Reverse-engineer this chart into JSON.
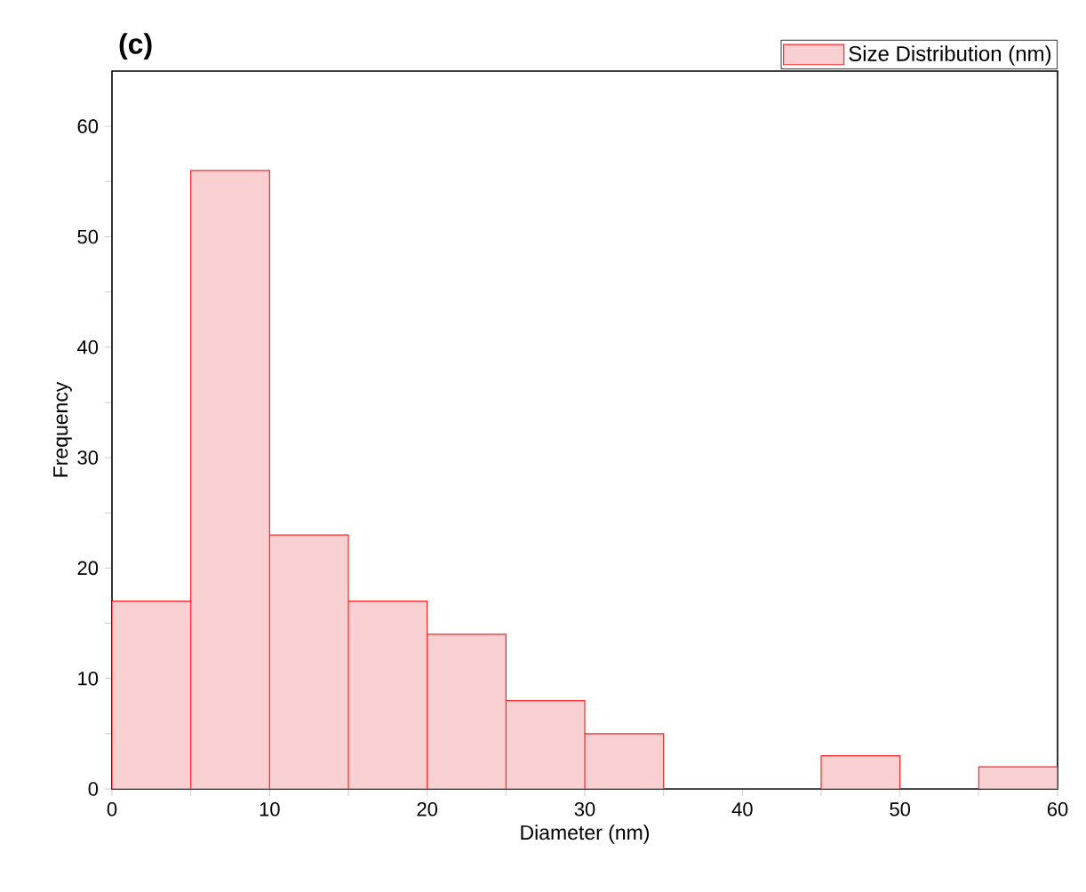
{
  "chart_data": {
    "type": "histogram",
    "title": "(c)",
    "xlabel": "Diameter (nm)",
    "ylabel": "Frequency",
    "bins": [
      0,
      5,
      10,
      15,
      20,
      25,
      30,
      35,
      40,
      45,
      50,
      55,
      60
    ],
    "series": [
      {
        "name": "Size Distribution (nm)",
        "color": "#f9d0d2",
        "values": [
          17,
          56,
          23,
          17,
          14,
          8,
          5,
          0,
          0,
          3,
          0,
          2
        ]
      }
    ],
    "xlim": [
      0,
      60
    ],
    "ylim": [
      0,
      65
    ],
    "xticks": [
      0,
      {
        "value": 5,
        "label": null
      },
      10,
      {
        "value": 15,
        "label": null
      },
      20,
      {
        "value": 25,
        "label": null
      },
      30,
      {
        "value": 35,
        "label": null
      },
      40,
      {
        "value": 45,
        "label": null
      },
      50,
      {
        "value": 55,
        "label": null
      },
      60
    ],
    "yticks": [
      0,
      {
        "value": 5,
        "label": null
      },
      10,
      {
        "value": 15,
        "label": null
      },
      20,
      {
        "value": 25,
        "label": null
      },
      30,
      {
        "value": 35,
        "label": null
      },
      40,
      {
        "value": 45,
        "label": null
      },
      50,
      {
        "value": 55,
        "label": null
      },
      60
    ],
    "grid": false,
    "legend": "top right"
  }
}
